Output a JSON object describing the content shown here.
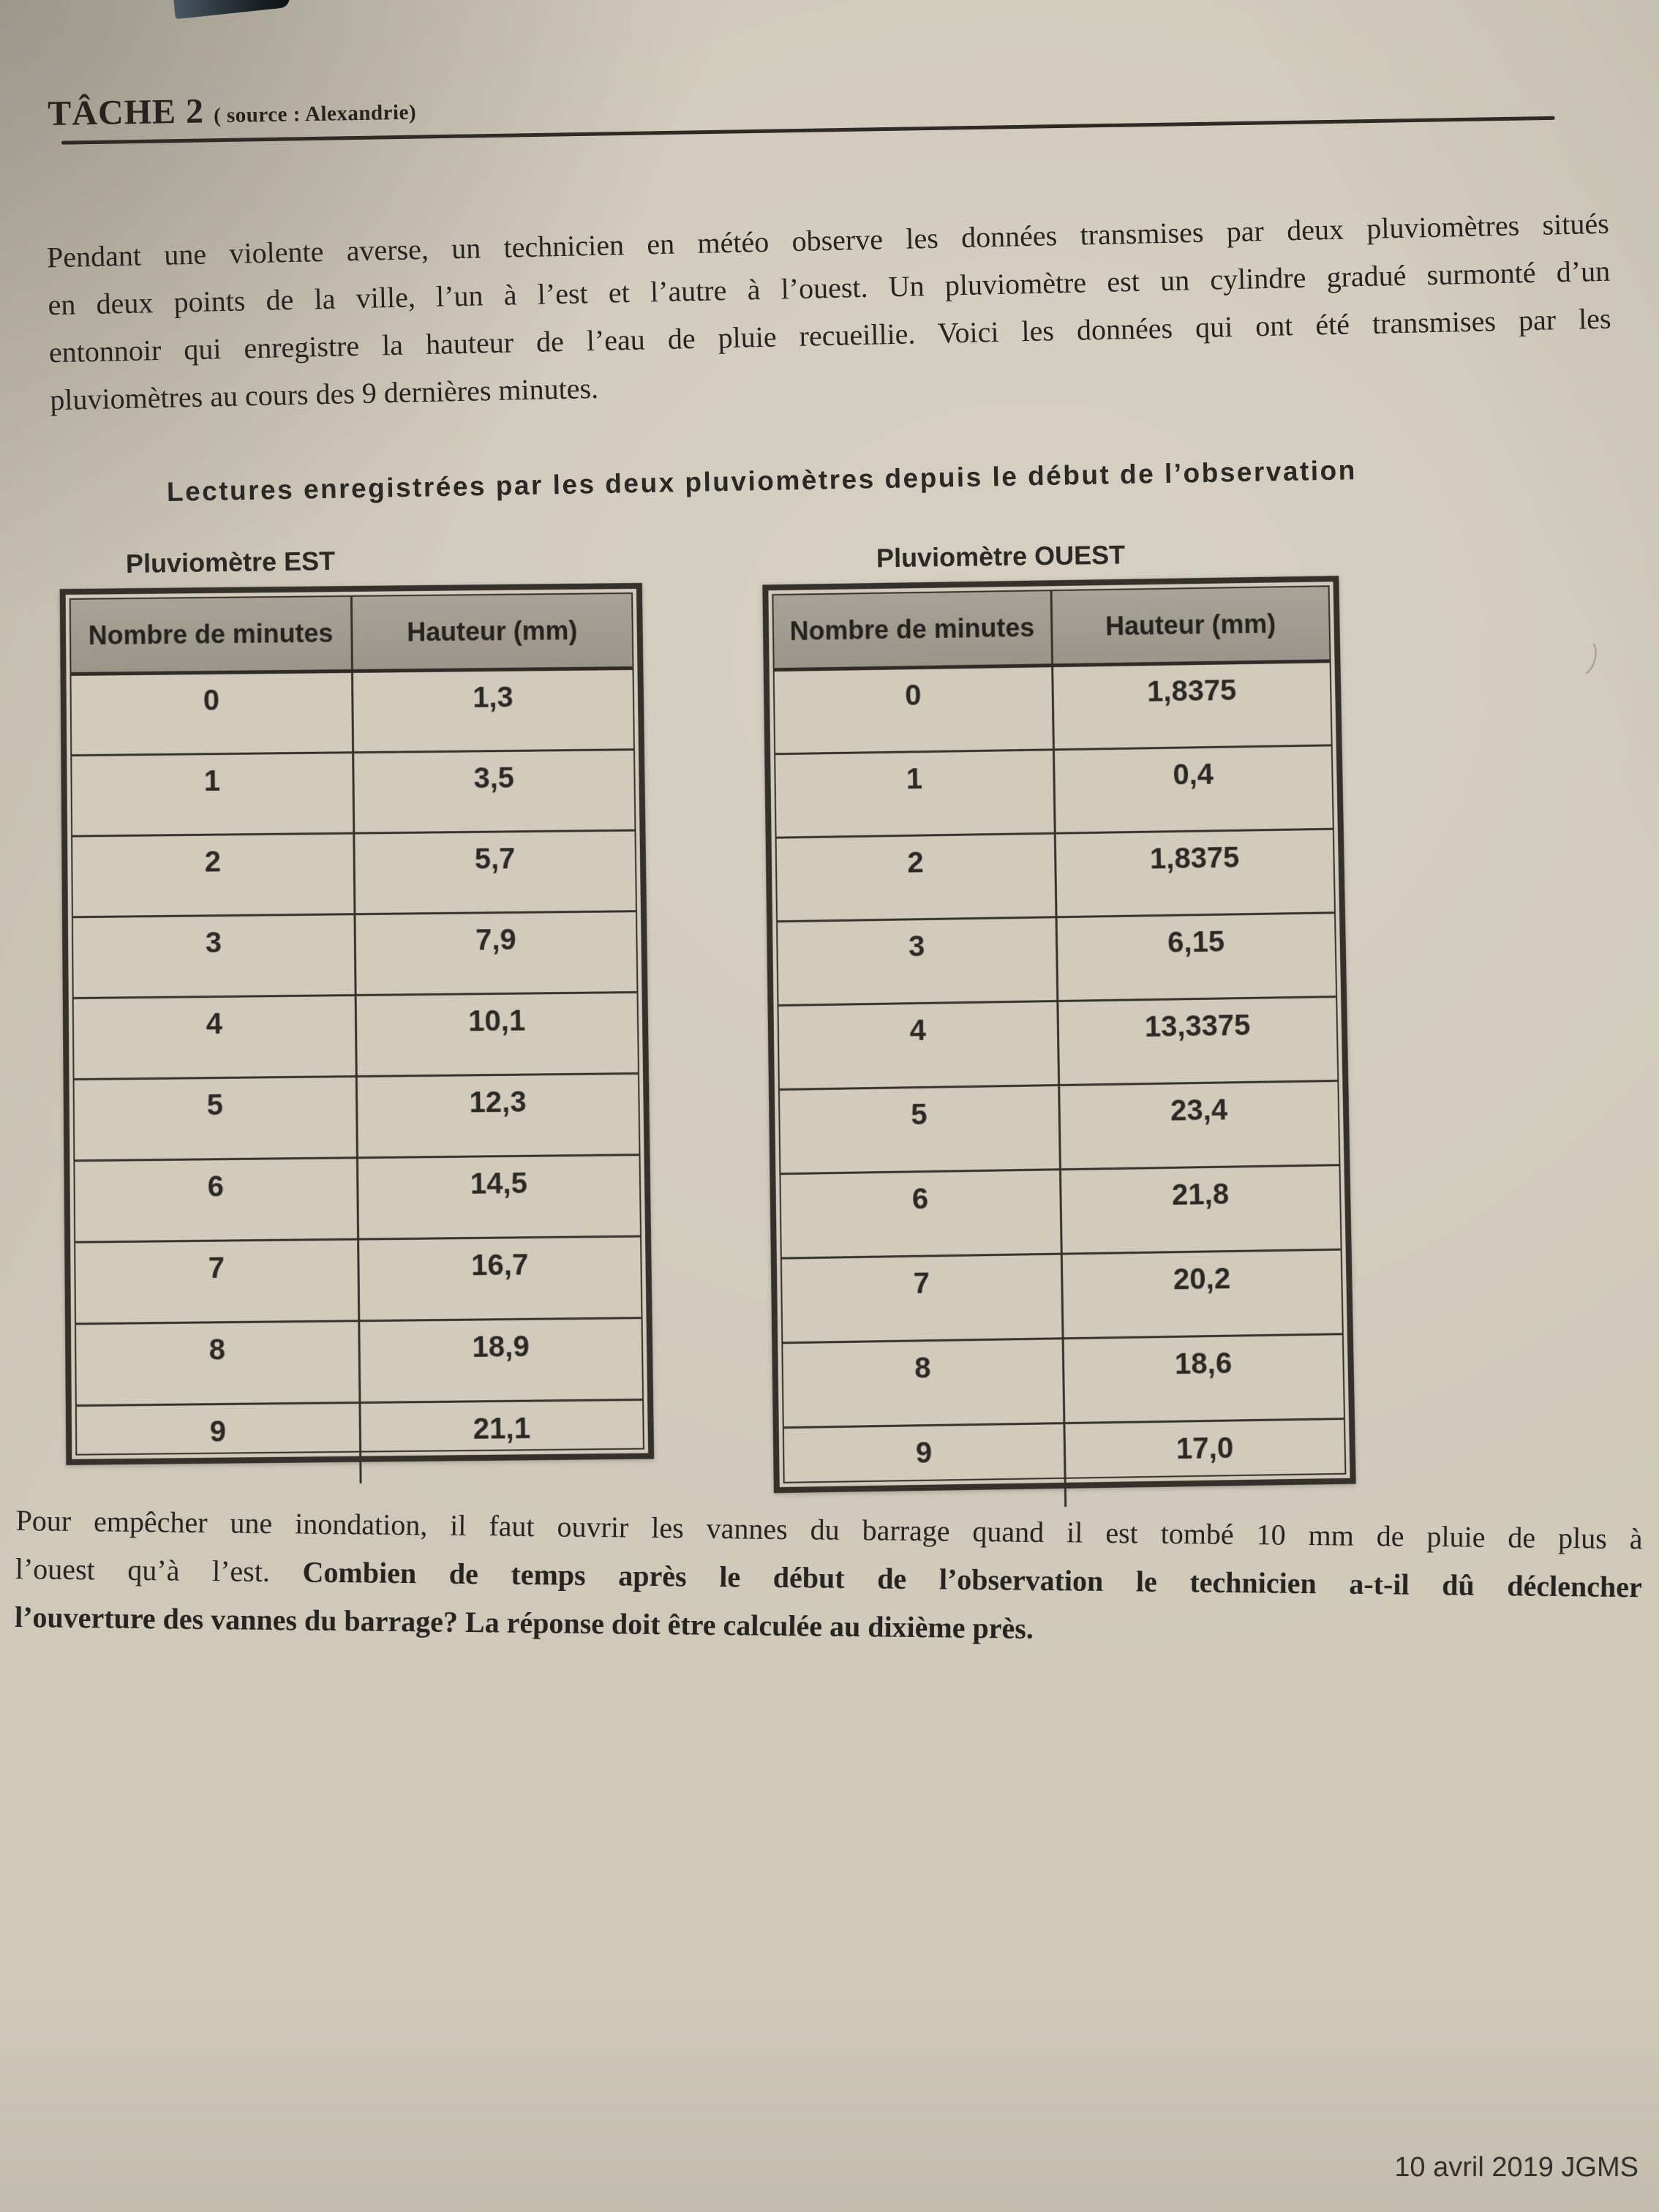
{
  "header": {
    "title": "TÂCHE 2",
    "source": "( source : Alexandrie)"
  },
  "intro": {
    "lines": [
      [
        {
          "t": "Pendant une violente averse, un technicien en météo observe les données transmises par deux pluviomètres situés",
          "b": false
        }
      ],
      [
        {
          "t": "en deux points de la ville, l’un à l’est et l’autre à l’ouest. Un pluviomètre est un cylindre gradué surmonté d’un",
          "b": false
        }
      ],
      [
        {
          "t": "entonnoir qui enregistre la hauteur de l’eau de pluie recueillie. Voici les données qui ont été transmises par les",
          "b": false
        }
      ],
      [
        {
          "t": "pluviomètres au cours des 9 dernières minutes.",
          "b": false
        }
      ]
    ]
  },
  "caption": "Lectures enregistrées par les deux pluviomètres depuis le début de l’observation",
  "tables": {
    "est": {
      "title": "Pluviomètre EST",
      "headers": [
        "Nombre de minutes",
        "Hauteur (mm)"
      ],
      "rows": [
        [
          "0",
          "1,3"
        ],
        [
          "1",
          "3,5"
        ],
        [
          "2",
          "5,7"
        ],
        [
          "3",
          "7,9"
        ],
        [
          "4",
          "10,1"
        ],
        [
          "5",
          "12,3"
        ],
        [
          "6",
          "14,5"
        ],
        [
          "7",
          "16,7"
        ],
        [
          "8",
          "18,9"
        ],
        [
          "9",
          "21,1"
        ]
      ]
    },
    "ouest": {
      "title": "Pluviomètre OUEST",
      "headers": [
        "Nombre de minutes",
        "Hauteur (mm)"
      ],
      "rows": [
        [
          "0",
          "1,8375"
        ],
        [
          "1",
          "0,4"
        ],
        [
          "2",
          "1,8375"
        ],
        [
          "3",
          "6,15"
        ],
        [
          "4",
          "13,3375"
        ],
        [
          "5",
          "23,4"
        ],
        [
          "6",
          "21,8"
        ],
        [
          "7",
          "20,2"
        ],
        [
          "8",
          "18,6"
        ],
        [
          "9",
          "17,0"
        ]
      ]
    }
  },
  "question": {
    "lines": [
      [
        {
          "t": "Pour empêcher une inondation, il faut ouvrir les vannes du barrage quand il est tombé 10 mm de pluie de plus à",
          "b": false
        }
      ],
      [
        {
          "t": "l’ouest qu’à l’est. ",
          "b": false
        },
        {
          "t": "Combien de temps après le début de l’observation le technicien a-t-il dû déclencher",
          "b": true
        }
      ],
      [
        {
          "t": "l’ouverture des vannes du barrage? La réponse doit être calculée au dixième près.",
          "b": true
        }
      ]
    ]
  },
  "footer": "10 avril 2019 JGMS"
}
